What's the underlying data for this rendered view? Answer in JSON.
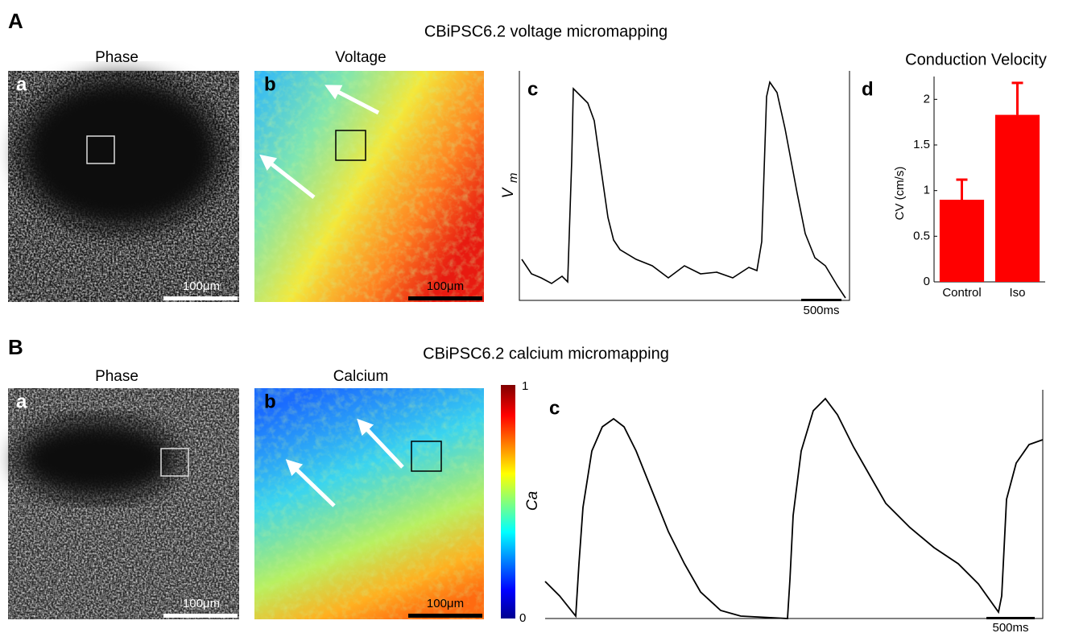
{
  "figure": {
    "A": {
      "label": "A",
      "title": "CBiPSC6.2 voltage micromapping",
      "phase": "Phase",
      "a": "a",
      "scale_a": "100μm",
      "map": "Voltage",
      "b": "b",
      "scale_b": "100μm",
      "c": "c",
      "ylabel": "V",
      "ylabel_sub": "m",
      "time_bar": "500ms",
      "d": "d"
    },
    "B": {
      "label": "B",
      "title": "CBiPSC6.2 calcium micromapping",
      "phase": "Phase",
      "a": "a",
      "scale_a": "100μm",
      "map": "Calcium",
      "b": "b",
      "scale_b": "100μm",
      "colorbar_max": "1",
      "colorbar_min": "0",
      "colorbar_label": "Ca",
      "c": "c",
      "time_bar": "500ms"
    }
  },
  "chart_data": {
    "type": "bar",
    "title": "Conduction Velocity",
    "y_label": "CV (cm/s)",
    "categories": [
      "Control",
      "Iso"
    ],
    "values": [
      0.9,
      1.83
    ],
    "errors": [
      0.22,
      0.35
    ],
    "color": "#ff0000",
    "ylim": [
      0,
      2.25
    ],
    "yticks": [
      0,
      0.5,
      1,
      1.5,
      2
    ]
  }
}
